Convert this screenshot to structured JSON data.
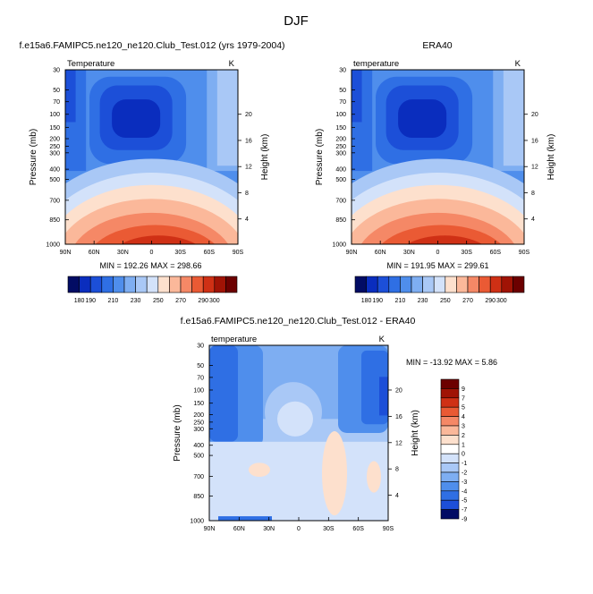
{
  "figure": {
    "title": "DJF"
  },
  "chart_data": [
    {
      "type": "heatmap",
      "title": "f.e15a6.FAMIPC5.ne120_ne120.Club_Test.012 (yrs 1979-2004)",
      "left_label": "Temperature",
      "right_label": "K",
      "xlabel": "",
      "ylabel": "Pressure (mb)",
      "y2label": "Height (km)",
      "x_ticks": [
        "90N",
        "60N",
        "30N",
        "0",
        "30S",
        "60S",
        "90S"
      ],
      "y_ticks": [
        30,
        50,
        70,
        100,
        150,
        200,
        250,
        300,
        400,
        500,
        700,
        850,
        1000
      ],
      "y2_ticks": [
        4,
        8,
        12,
        16,
        20
      ],
      "ylim": [
        1000,
        30
      ],
      "xlim": [
        90,
        -90
      ],
      "min_max": "MIN = 192.26  MAX = 298.66",
      "colorbar_levels": [
        "180",
        "190",
        "200",
        "210",
        "220",
        "230",
        "240",
        "250",
        "260",
        "270",
        "280",
        "290",
        "300"
      ],
      "colorbar_labels": [
        "180",
        "190",
        "210",
        "230",
        "250",
        "270",
        "290",
        "300"
      ]
    },
    {
      "type": "heatmap",
      "title": "ERA40",
      "left_label": "temperature",
      "right_label": "K",
      "xlabel": "",
      "ylabel": "Pressure (mb)",
      "y2label": "Height (km)",
      "x_ticks": [
        "90N",
        "60N",
        "30N",
        "0",
        "30S",
        "60S",
        "90S"
      ],
      "y_ticks": [
        30,
        50,
        70,
        100,
        150,
        200,
        250,
        300,
        400,
        500,
        700,
        850,
        1000
      ],
      "y2_ticks": [
        4,
        8,
        12,
        16,
        20
      ],
      "ylim": [
        1000,
        30
      ],
      "xlim": [
        90,
        -90
      ],
      "min_max": "MIN = 191.95  MAX = 299.61",
      "colorbar_levels": [
        "180",
        "190",
        "200",
        "210",
        "220",
        "230",
        "240",
        "250",
        "260",
        "270",
        "280",
        "290",
        "300"
      ],
      "colorbar_labels": [
        "180",
        "190",
        "210",
        "230",
        "250",
        "270",
        "290",
        "300"
      ]
    },
    {
      "type": "heatmap",
      "title": "f.e15a6.FAMIPC5.ne120_ne120.Club_Test.012 - ERA40",
      "left_label": "temperature",
      "right_label": "K",
      "xlabel": "",
      "ylabel": "Pressure (mb)",
      "y2label": "Height (km)",
      "x_ticks": [
        "90N",
        "60N",
        "30N",
        "0",
        "30S",
        "60S",
        "90S"
      ],
      "y_ticks": [
        30,
        50,
        70,
        100,
        150,
        200,
        250,
        300,
        400,
        500,
        700,
        850,
        1000
      ],
      "y2_ticks": [
        4,
        8,
        12,
        16,
        20
      ],
      "ylim": [
        1000,
        30
      ],
      "xlim": [
        90,
        -90
      ],
      "min_max": "MIN = -13.92  MAX =   5.86",
      "colorbar_levels": [
        "9",
        "7",
        "5",
        "4",
        "3",
        "2",
        "1",
        "0",
        "-1",
        "-2",
        "-3",
        "-4",
        "-5",
        "-7",
        "-9"
      ]
    }
  ],
  "colors": {
    "temperature_scale": [
      "#020c64",
      "#0a2dbe",
      "#1c4fd8",
      "#2f6fe4",
      "#4f8eec",
      "#7eaef2",
      "#a9c8f6",
      "#d3e2fa",
      "#fde0cd",
      "#fbb89a",
      "#f58866",
      "#ea5a34",
      "#cf3015",
      "#a01305",
      "#6c0000"
    ],
    "difference_scale": [
      "#6c0000",
      "#a01305",
      "#cf3015",
      "#ea5a34",
      "#f58866",
      "#fbb89a",
      "#fde0cd",
      "#ffffff",
      "#d3e2fa",
      "#a9c8f6",
      "#7eaef2",
      "#4f8eec",
      "#2f6fe4",
      "#1c4fd8",
      "#020c64"
    ]
  }
}
